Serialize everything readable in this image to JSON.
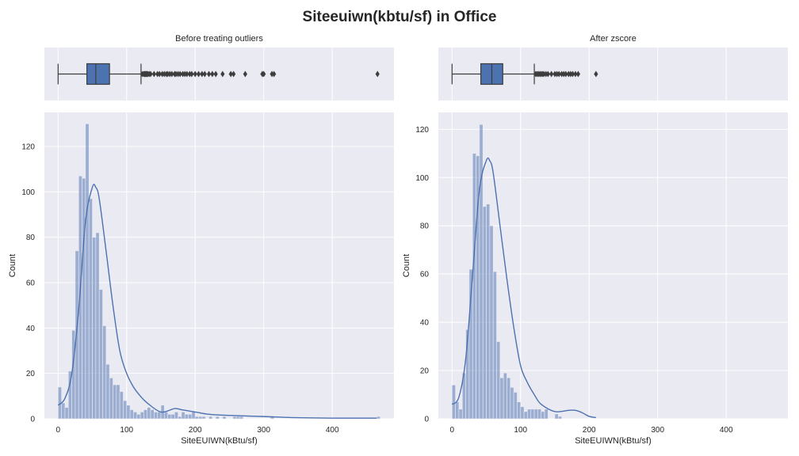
{
  "figure": {
    "title": "Siteeuiwn(kbtu/sf) in Office"
  },
  "colors": {
    "panel_bg": "#eaeaf2",
    "grid": "#ffffff",
    "box": "#4c72b0",
    "bar": "#4c72b0",
    "bar_opacity": 0.5,
    "line": "#4c72b0",
    "outlier": "#3d3d3d"
  },
  "chart_data": [
    {
      "title": "Before treating outliers",
      "type": "histogram+kde+boxplot",
      "xlabel": "SiteEUIWN(kBtu/sf)",
      "ylabel": "Count",
      "xlim": [
        -20,
        490
      ],
      "ylim": [
        0,
        135
      ],
      "xticks": [
        0,
        100,
        200,
        300,
        400
      ],
      "yticks": [
        0,
        20,
        40,
        60,
        80,
        100,
        120
      ],
      "grid": true,
      "boxplot": {
        "whisker_low": 0,
        "q1": 42,
        "median": 55,
        "q3": 75,
        "whisker_high": 121,
        "outliers": [
          123,
          125,
          126,
          127,
          128,
          129,
          130,
          131,
          133,
          135,
          140,
          145,
          148,
          152,
          155,
          158,
          160,
          163,
          166,
          170,
          172,
          175,
          178,
          182,
          185,
          188,
          192,
          195,
          200,
          205,
          210,
          214,
          220,
          225,
          230,
          240,
          252,
          256,
          273,
          298,
          300,
          312,
          315,
          466
        ]
      },
      "bins": {
        "start": 0,
        "width": 5,
        "counts": [
          14,
          7,
          5,
          21,
          39,
          74,
          107,
          106,
          130,
          97,
          80,
          82,
          57,
          41,
          24,
          18,
          15,
          15,
          12,
          8,
          6,
          4,
          3,
          2,
          3,
          4,
          5,
          4,
          3,
          3,
          6,
          3,
          2,
          2,
          3,
          1,
          3,
          2,
          2,
          3,
          1,
          1,
          1,
          0,
          1,
          0,
          1,
          0,
          1,
          0,
          0,
          1,
          1,
          1,
          0,
          0,
          0,
          0,
          0,
          0,
          0,
          0,
          1,
          0,
          0,
          0,
          0,
          0,
          0,
          0,
          0,
          0,
          0,
          0,
          0,
          0,
          0,
          0,
          0,
          0,
          0,
          0,
          0,
          0,
          0,
          0,
          0,
          0,
          0,
          0,
          0,
          0,
          0,
          1
        ]
      },
      "kde": {
        "x": [
          0,
          10,
          20,
          30,
          40,
          50,
          55,
          60,
          70,
          80,
          90,
          100,
          110,
          120,
          130,
          150,
          170,
          180,
          190,
          200,
          220,
          250,
          300,
          350,
          400,
          465
        ],
        "y": [
          6,
          9,
          20,
          48,
          87,
          102,
          102,
          97,
          74,
          50,
          30,
          20,
          14,
          10,
          7,
          3,
          4.5,
          4,
          3.5,
          3,
          2,
          1.5,
          1,
          0.5,
          0.3,
          0.3
        ]
      }
    },
    {
      "title": "After zscore",
      "type": "histogram+kde+boxplot",
      "xlabel": "SiteEUIWN(kBtu/sf)",
      "ylabel": "Count",
      "xlim": [
        -20,
        490
      ],
      "ylim": [
        0,
        127
      ],
      "xticks": [
        0,
        100,
        200,
        300,
        400
      ],
      "yticks": [
        0,
        20,
        40,
        60,
        80,
        100,
        120
      ],
      "grid": true,
      "boxplot": {
        "whisker_low": 0,
        "q1": 42,
        "median": 58,
        "q3": 74,
        "whisker_high": 120,
        "outliers": [
          122,
          124,
          126,
          128,
          130,
          132,
          134,
          137,
          140,
          145,
          150,
          153,
          156,
          160,
          163,
          166,
          170,
          173,
          176,
          180,
          184,
          210
        ]
      },
      "bins": {
        "start": 0,
        "width": 5,
        "counts": [
          14,
          7,
          4,
          19,
          37,
          62,
          110,
          109,
          122,
          88,
          89,
          80,
          61,
          32,
          17,
          19,
          17,
          13,
          11,
          7,
          5,
          3,
          4,
          4,
          4,
          4,
          3,
          4,
          0,
          0,
          2,
          1
        ]
      },
      "kde": {
        "x": [
          0,
          10,
          20,
          30,
          40,
          50,
          55,
          60,
          70,
          80,
          90,
          100,
          110,
          120,
          130,
          150,
          170,
          180,
          190,
          200,
          210
        ],
        "y": [
          6,
          9,
          25,
          60,
          95,
          107,
          107,
          102,
          80,
          58,
          38,
          22,
          15,
          10,
          6,
          3,
          3.5,
          3.5,
          2.5,
          1,
          0.5
        ]
      }
    }
  ]
}
